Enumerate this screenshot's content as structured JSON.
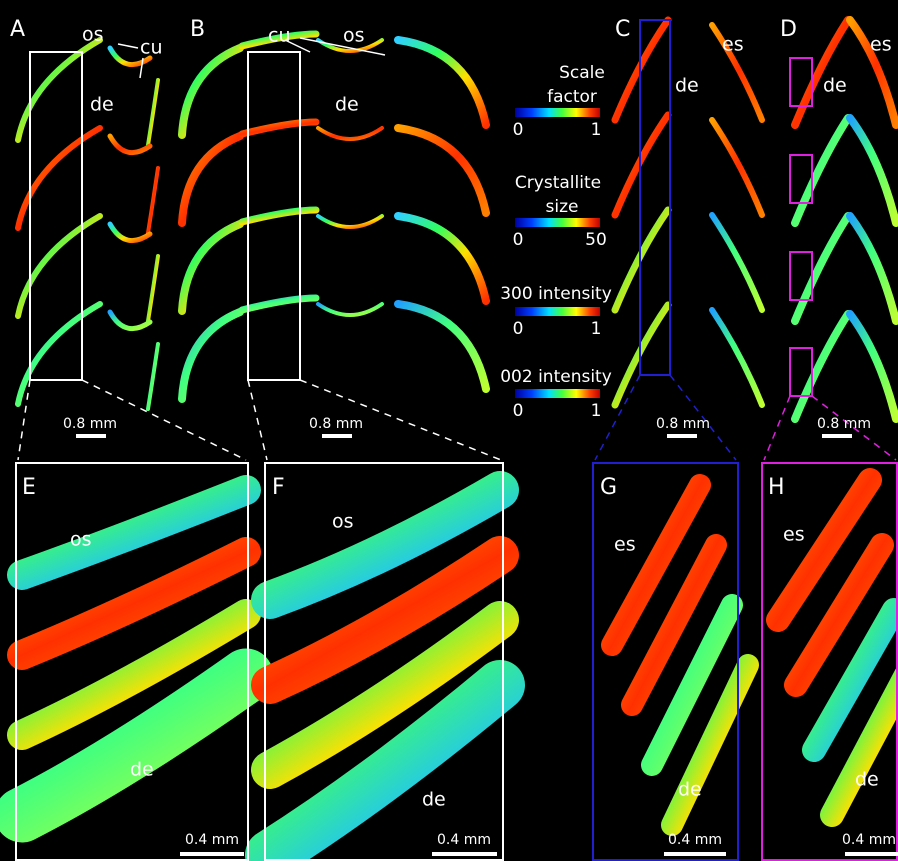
{
  "panels": [
    {
      "letter": "A",
      "labels": [
        "os",
        "cu",
        "de"
      ],
      "scale_bar": "0.8 mm"
    },
    {
      "letter": "B",
      "labels": [
        "cu",
        "os",
        "de"
      ],
      "scale_bar": "0.8 mm"
    },
    {
      "letter": "C",
      "labels": [
        "es",
        "de"
      ],
      "scale_bar": "0.8 mm"
    },
    {
      "letter": "D",
      "labels": [
        "es",
        "de"
      ],
      "scale_bar": "0.8 mm"
    },
    {
      "letter": "E",
      "labels": [
        "os",
        "de"
      ],
      "scale_bar": "0.4 mm"
    },
    {
      "letter": "F",
      "labels": [
        "os",
        "de"
      ],
      "scale_bar": "0.4 mm"
    },
    {
      "letter": "G",
      "labels": [
        "es",
        "de"
      ],
      "scale_bar": "0.4 mm"
    },
    {
      "letter": "H",
      "labels": [
        "es",
        "de"
      ],
      "scale_bar": "0.4 mm"
    }
  ],
  "colorbars": [
    {
      "title": [
        "Scale",
        "factor"
      ],
      "min": 0,
      "max": 1
    },
    {
      "title": [
        "Crystallite",
        "size"
      ],
      "min": 0,
      "max": 50
    },
    {
      "title": [
        "300 intensity"
      ],
      "min": 0,
      "max": 1
    },
    {
      "title": [
        "002 intensity"
      ],
      "min": 0,
      "max": 1
    }
  ]
}
